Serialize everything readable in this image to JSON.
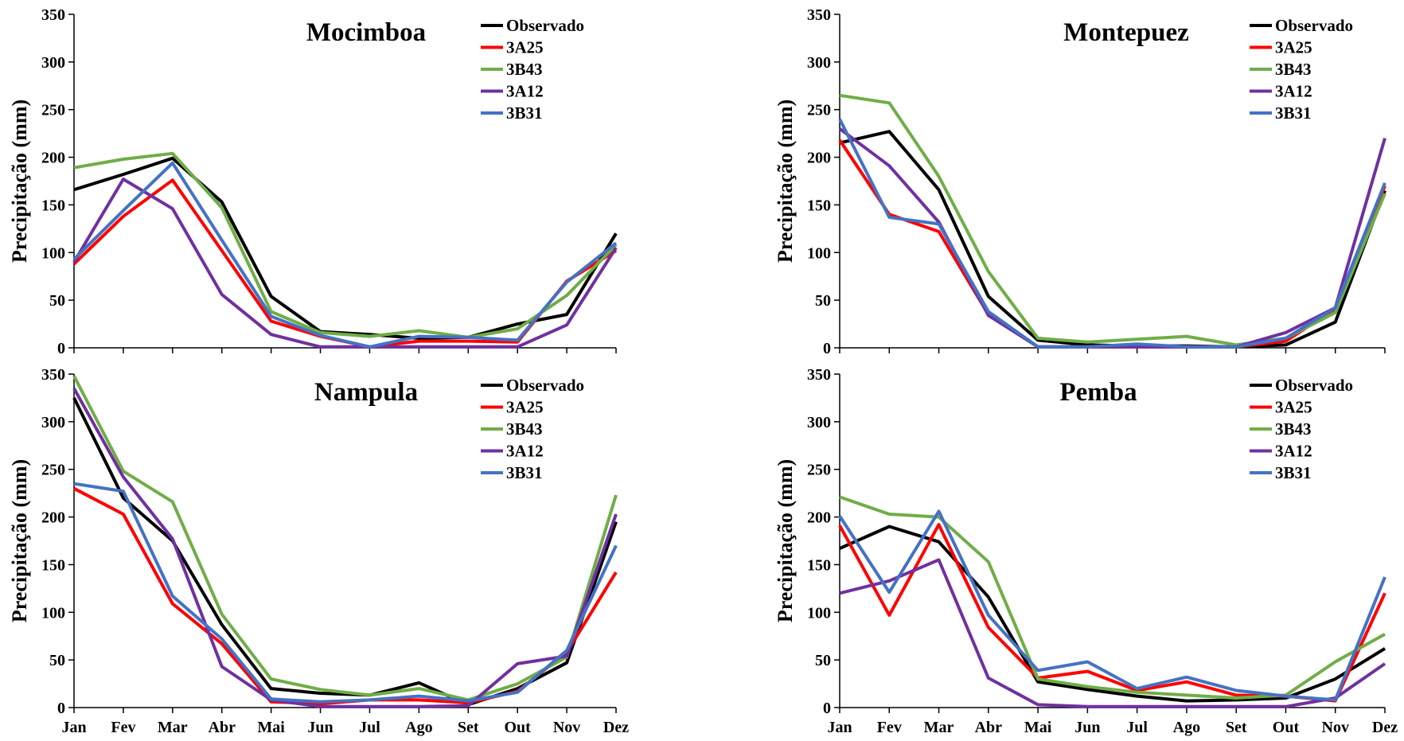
{
  "chart_data": [
    {
      "type": "line",
      "title": "Mocimboa",
      "ylabel": "Precipitação (mm)",
      "xlabel": "",
      "ylim": [
        0,
        350
      ],
      "yticks": [
        0,
        50,
        100,
        150,
        200,
        250,
        300,
        350
      ],
      "grid": false,
      "legend": "top-right",
      "categories": [
        "Jan",
        "Fev",
        "Mar",
        "Abr",
        "Mai",
        "Jun",
        "Jul",
        "Ago",
        "Set",
        "Out",
        "Nov",
        "Dez"
      ],
      "show_xticks": false,
      "series": [
        {
          "name": "Observado",
          "color": "#000000",
          "values": [
            166,
            182,
            199,
            153,
            54,
            17,
            14,
            10,
            11,
            25,
            35,
            120
          ]
        },
        {
          "name": "3A25",
          "color": "#ff0000",
          "values": [
            88,
            138,
            176,
            102,
            28,
            12,
            1,
            7,
            7,
            6,
            70,
            102
          ]
        },
        {
          "name": "3B43",
          "color": "#70ad47",
          "values": [
            189,
            198,
            204,
            147,
            38,
            16,
            12,
            18,
            11,
            20,
            55,
            108
          ]
        },
        {
          "name": "3A12",
          "color": "#7030a0",
          "values": [
            90,
            177,
            146,
            56,
            14,
            1,
            1,
            1,
            1,
            1,
            24,
            105
          ]
        },
        {
          "name": "3B31",
          "color": "#4472c4",
          "values": [
            93,
            144,
            194,
            113,
            33,
            13,
            1,
            12,
            11,
            8,
            69,
            110
          ]
        }
      ]
    },
    {
      "type": "line",
      "title": "Montepuez",
      "ylabel": "Precipitação (mm)",
      "xlabel": "",
      "ylim": [
        0,
        350
      ],
      "yticks": [
        0,
        50,
        100,
        150,
        200,
        250,
        300,
        350
      ],
      "grid": false,
      "legend": "top-right",
      "categories": [
        "Jan",
        "Fev",
        "Mar",
        "Abr",
        "Mai",
        "Jun",
        "Jul",
        "Ago",
        "Set",
        "Out",
        "Nov",
        "Dez"
      ],
      "show_xticks": false,
      "series": [
        {
          "name": "Observado",
          "color": "#000000",
          "values": [
            215,
            227,
            166,
            54,
            8,
            3,
            2,
            2,
            1,
            3,
            27,
            165
          ]
        },
        {
          "name": "3A25",
          "color": "#ff0000",
          "values": [
            218,
            140,
            122,
            35,
            1,
            1,
            1,
            1,
            1,
            7,
            41,
            170
          ]
        },
        {
          "name": "3B43",
          "color": "#70ad47",
          "values": [
            265,
            257,
            180,
            80,
            10,
            6,
            9,
            12,
            3,
            10,
            37,
            162
          ]
        },
        {
          "name": "3A12",
          "color": "#7030a0",
          "values": [
            230,
            191,
            132,
            34,
            1,
            1,
            1,
            1,
            1,
            16,
            42,
            220
          ]
        },
        {
          "name": "3B31",
          "color": "#4472c4",
          "values": [
            240,
            137,
            130,
            38,
            1,
            1,
            4,
            1,
            1,
            10,
            42,
            173
          ]
        }
      ]
    },
    {
      "type": "line",
      "title": "Nampula",
      "ylabel": "Precipitação (mm)",
      "xlabel": "",
      "ylim": [
        0,
        350
      ],
      "yticks": [
        0,
        50,
        100,
        150,
        200,
        250,
        300,
        350
      ],
      "grid": false,
      "legend": "top-right",
      "categories": [
        "Jan",
        "Fev",
        "Mar",
        "Abr",
        "Mai",
        "Jun",
        "Jul",
        "Ago",
        "Set",
        "Out",
        "Nov",
        "Dez"
      ],
      "show_xticks": true,
      "series": [
        {
          "name": "Observado",
          "color": "#000000",
          "values": [
            325,
            220,
            175,
            87,
            20,
            15,
            13,
            26,
            3,
            20,
            47,
            195
          ]
        },
        {
          "name": "3A25",
          "color": "#ff0000",
          "values": [
            230,
            203,
            109,
            67,
            6,
            4,
            8,
            8,
            5,
            17,
            58,
            142
          ]
        },
        {
          "name": "3B43",
          "color": "#70ad47",
          "values": [
            348,
            248,
            216,
            98,
            30,
            19,
            13,
            20,
            8,
            25,
            53,
            223
          ]
        },
        {
          "name": "3A12",
          "color": "#7030a0",
          "values": [
            335,
            242,
            177,
            43,
            8,
            1,
            1,
            1,
            2,
            46,
            54,
            203
          ]
        },
        {
          "name": "3B31",
          "color": "#4472c4",
          "values": [
            235,
            227,
            117,
            72,
            9,
            6,
            8,
            12,
            7,
            16,
            60,
            170
          ]
        }
      ]
    },
    {
      "type": "line",
      "title": "Pemba",
      "ylabel": "Precipitação (mm)",
      "xlabel": "",
      "ylim": [
        0,
        350
      ],
      "yticks": [
        0,
        50,
        100,
        150,
        200,
        250,
        300,
        350
      ],
      "grid": false,
      "legend": "top-right",
      "categories": [
        "Jan",
        "Fev",
        "Mar",
        "Abr",
        "Mai",
        "Jun",
        "Jul",
        "Ago",
        "Set",
        "Out",
        "Nov",
        "Dez"
      ],
      "show_xticks": true,
      "series": [
        {
          "name": "Observado",
          "color": "#000000",
          "values": [
            167,
            190,
            174,
            116,
            27,
            19,
            12,
            7,
            8,
            10,
            30,
            62
          ]
        },
        {
          "name": "3A25",
          "color": "#ff0000",
          "values": [
            191,
            97,
            192,
            84,
            31,
            38,
            18,
            27,
            13,
            12,
            7,
            120
          ]
        },
        {
          "name": "3B43",
          "color": "#70ad47",
          "values": [
            221,
            203,
            200,
            153,
            30,
            22,
            16,
            13,
            10,
            13,
            48,
            77
          ]
        },
        {
          "name": "3A12",
          "color": "#7030a0",
          "values": [
            120,
            133,
            155,
            31,
            3,
            1,
            1,
            1,
            1,
            1,
            10,
            46
          ]
        },
        {
          "name": "3B31",
          "color": "#4472c4",
          "values": [
            201,
            121,
            206,
            97,
            39,
            48,
            20,
            32,
            18,
            12,
            8,
            137
          ]
        }
      ]
    }
  ]
}
